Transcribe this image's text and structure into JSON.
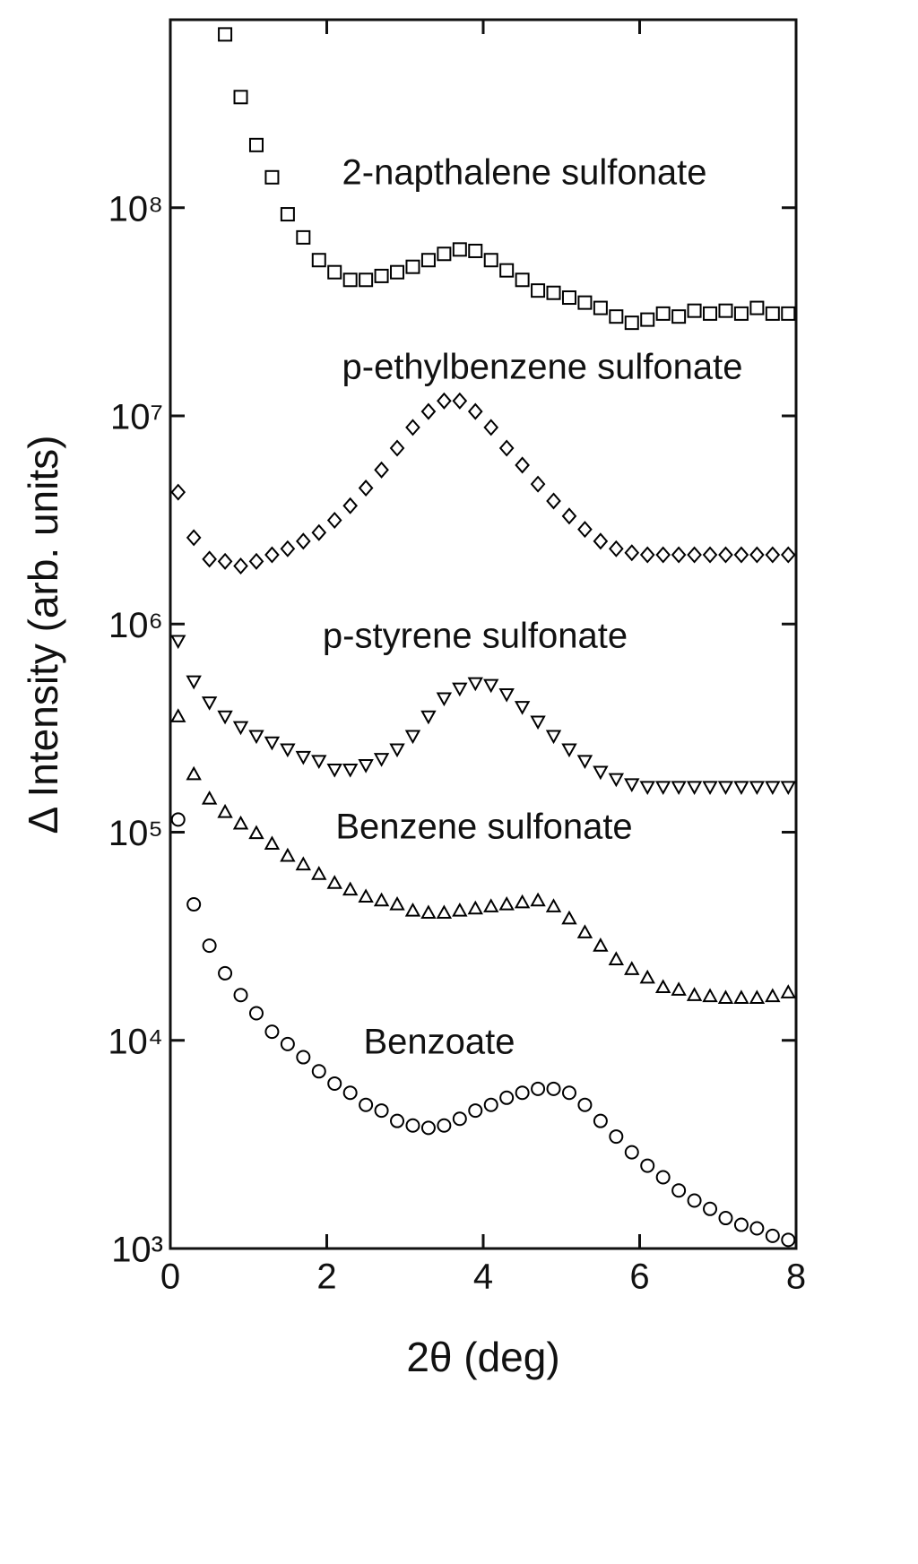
{
  "chart_data": {
    "type": "scatter",
    "x_label": "2θ (deg)",
    "y_label": "Δ Intensity (arb. units)",
    "log_y": true,
    "xlim": [
      0,
      8
    ],
    "xticks": [
      0,
      2,
      4,
      6,
      8
    ],
    "ylim": [
      1000,
      800000000
    ],
    "yticks": [
      {
        "value": 1000,
        "label": "10³"
      },
      {
        "value": 10000,
        "label": "10⁴"
      },
      {
        "value": 100000,
        "label": "10⁵"
      },
      {
        "value": 1000000,
        "label": "10⁶"
      },
      {
        "value": 10000000,
        "label": "10⁷"
      },
      {
        "value": 100000000,
        "label": "10⁸"
      }
    ],
    "x": [
      0.1,
      0.3,
      0.5,
      0.7,
      0.9,
      1.1,
      1.3,
      1.5,
      1.7,
      1.9,
      2.1,
      2.3,
      2.5,
      2.7,
      2.9,
      3.1,
      3.3,
      3.5,
      3.7,
      3.9,
      4.1,
      4.3,
      4.5,
      4.7,
      4.9,
      5.1,
      5.3,
      5.5,
      5.7,
      5.9,
      6.1,
      6.3,
      6.5,
      6.7,
      6.9,
      7.1,
      7.3,
      7.5,
      7.7,
      7.9
    ],
    "series": [
      {
        "name": "2-napthalene sulfonate",
        "marker": "square",
        "color": "#000000",
        "values": [
          null,
          null,
          null,
          680000000,
          340000000,
          200000000,
          140000000,
          93000000,
          72000000,
          56000000,
          49000000,
          45000000,
          45000000,
          47000000,
          49000000,
          52000000,
          56000000,
          60000000,
          63000000,
          62000000,
          56000000,
          50000000,
          45000000,
          40000000,
          39000000,
          37000000,
          35000000,
          33000000,
          30000000,
          28000000,
          29000000,
          31000000,
          30000000,
          32000000,
          31000000,
          32000000,
          31000000,
          33000000,
          31000000,
          31000000
        ]
      },
      {
        "name": "p-ethylbenzene sulfonate",
        "marker": "diamond",
        "color": "#000000",
        "values": [
          4300000,
          2600000,
          2050000,
          2000000,
          1900000,
          2000000,
          2150000,
          2300000,
          2500000,
          2750000,
          3150000,
          3700000,
          4500000,
          5500000,
          7000000,
          8800000,
          10500000,
          11800000,
          11800000,
          10500000,
          8800000,
          7000000,
          5800000,
          4700000,
          3900000,
          3300000,
          2850000,
          2500000,
          2300000,
          2200000,
          2150000,
          2150000,
          2150000,
          2150000,
          2150000,
          2150000,
          2150000,
          2150000,
          2150000,
          2150000
        ]
      },
      {
        "name": "p-styrene sulfonate",
        "marker": "triangle-down",
        "color": "#000000",
        "values": [
          830000,
          530000,
          420000,
          360000,
          320000,
          290000,
          270000,
          250000,
          230000,
          220000,
          200000,
          200000,
          210000,
          225000,
          250000,
          290000,
          360000,
          440000,
          490000,
          520000,
          510000,
          460000,
          400000,
          340000,
          290000,
          250000,
          220000,
          195000,
          180000,
          170000,
          165000,
          165000,
          165000,
          165000,
          165000,
          165000,
          165000,
          165000,
          165000,
          165000
        ]
      },
      {
        "name": "Benzene sulfonate",
        "marker": "triangle-up",
        "color": "#000000",
        "values": [
          360000,
          190000,
          145000,
          125000,
          110000,
          99000,
          88000,
          77000,
          70000,
          63000,
          57000,
          53000,
          49000,
          47000,
          45000,
          42000,
          41000,
          41000,
          42000,
          43000,
          44000,
          45000,
          46000,
          47000,
          44000,
          38500,
          33000,
          28500,
          24500,
          22000,
          20000,
          18000,
          17500,
          16500,
          16300,
          16000,
          16000,
          16000,
          16300,
          17000
        ]
      },
      {
        "name": "Benzoate",
        "marker": "circle",
        "color": "#000000",
        "values": [
          115000,
          45000,
          28500,
          21000,
          16500,
          13500,
          11000,
          9600,
          8300,
          7100,
          6200,
          5600,
          4900,
          4600,
          4100,
          3900,
          3800,
          3900,
          4200,
          4600,
          4900,
          5300,
          5600,
          5850,
          5850,
          5600,
          4900,
          4100,
          3450,
          2900,
          2500,
          2200,
          1900,
          1700,
          1550,
          1400,
          1300,
          1250,
          1150,
          1100
        ]
      }
    ]
  }
}
